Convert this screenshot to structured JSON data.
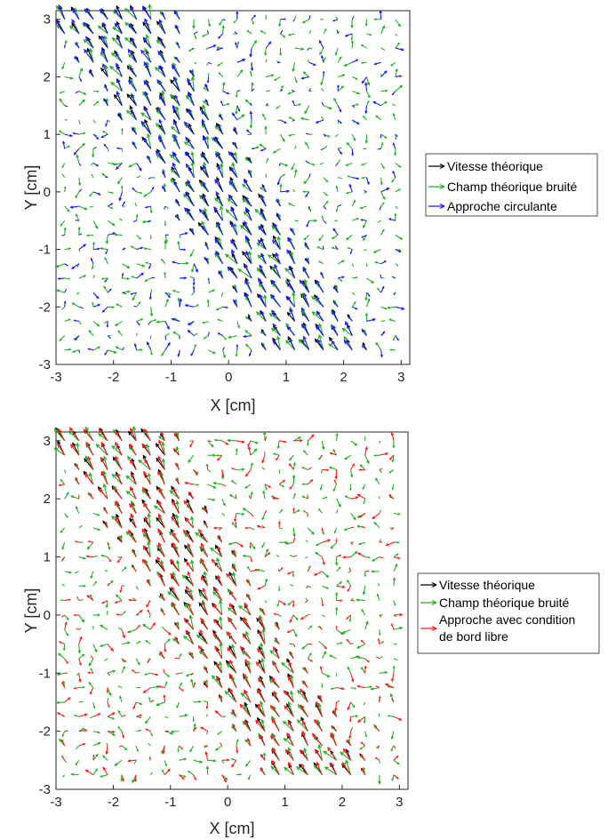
{
  "chart_data": [
    {
      "type": "quiver",
      "xlabel": "X [cm]",
      "ylabel": "Y [cm]",
      "xlim": [
        -3,
        3.15
      ],
      "ylim": [
        -3,
        3.15
      ],
      "xticks": [
        -3,
        -2,
        -1,
        0,
        1,
        2,
        3
      ],
      "yticks": [
        -3,
        -2,
        -1,
        0,
        1,
        2,
        3
      ],
      "grid": false,
      "legend_position": "right",
      "grid_spacing_cm": 0.25,
      "flow_description": "Strong diagonal band of vectors pointing up-left from lower-right (x≈1.5,y≈-2.5) to upper-left (x≈-2.5,y≈3), weak noise elsewhere",
      "series": [
        {
          "name": "Vitesse théorique",
          "color": "#000000"
        },
        {
          "name": "Champ théorique bruité",
          "color": "#22b022"
        },
        {
          "name": "Approche circulante",
          "color": "#1a1aff"
        }
      ]
    },
    {
      "type": "quiver",
      "xlabel": "X [cm]",
      "ylabel": "Y [cm]",
      "xlim": [
        -3,
        3.15
      ],
      "ylim": [
        -3,
        3.15
      ],
      "xticks": [
        -3,
        -2,
        -1,
        0,
        1,
        2,
        3
      ],
      "yticks": [
        -3,
        -2,
        -1,
        0,
        1,
        2,
        3
      ],
      "grid": false,
      "legend_position": "right",
      "grid_spacing_cm": 0.25,
      "flow_description": "Same diagonal band of vectors pointing up-left, weak noise elsewhere",
      "series": [
        {
          "name": "Vitesse théorique",
          "color": "#000000"
        },
        {
          "name": "Champ théorique bruité",
          "color": "#22b022"
        },
        {
          "name": "Approche avec condition de bord libre",
          "color": "#ff1a1a"
        }
      ]
    }
  ]
}
